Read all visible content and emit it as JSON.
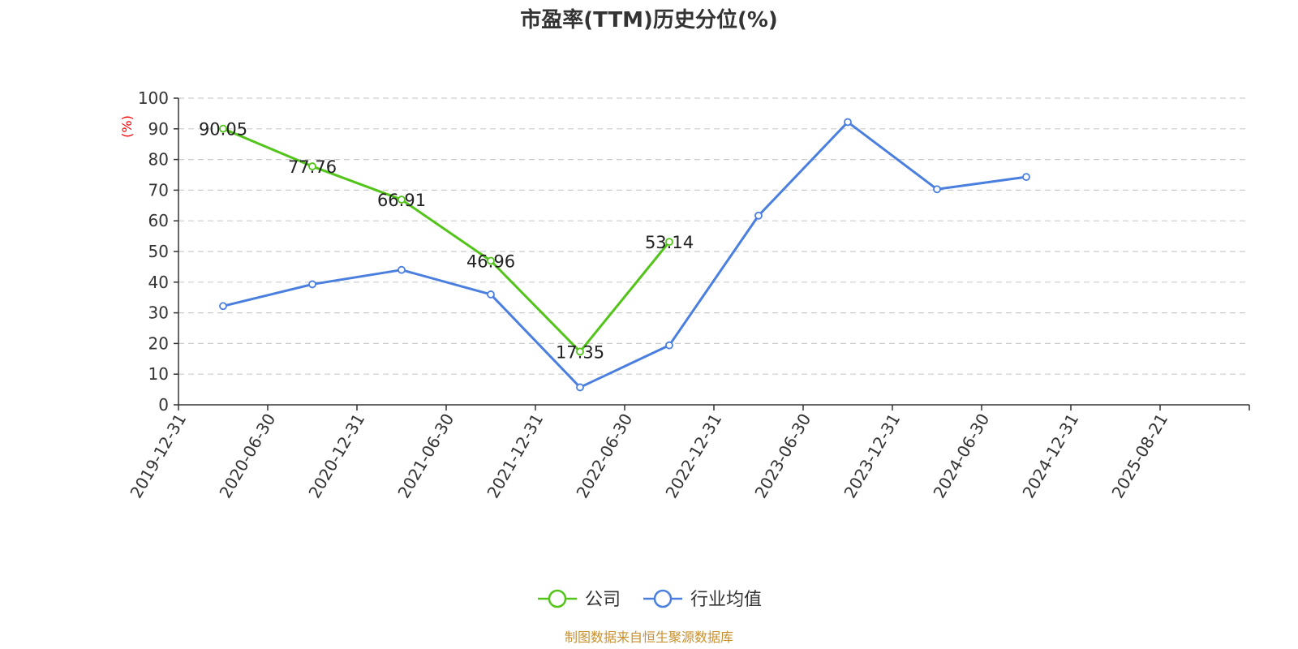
{
  "chart_data": {
    "type": "line",
    "title": "市盈率(TTM)历史分位(%)",
    "ylabel": "(%)",
    "xlabel": "",
    "ylim": [
      0,
      100
    ],
    "yticks": [
      0,
      10,
      20,
      30,
      40,
      50,
      60,
      70,
      80,
      90,
      100
    ],
    "categories": [
      "2019-12-31",
      "2020-06-30",
      "2020-12-31",
      "2021-06-30",
      "2021-12-31",
      "2022-06-30",
      "2022-12-31",
      "2023-06-30",
      "2023-12-31",
      "2024-06-30",
      "2024-12-31",
      "2025-08-21"
    ],
    "grid": true,
    "legend_position": "bottom-center",
    "series": [
      {
        "name": "公司",
        "color": "#52c41a",
        "show_labels": true,
        "values": [
          90.05,
          77.76,
          66.91,
          46.96,
          17.35,
          53.14,
          null,
          null,
          null,
          null,
          null,
          null
        ],
        "labels": [
          "90.05",
          "77.76",
          "66.91",
          "46.96",
          "17.35",
          "53.14",
          null,
          null,
          null,
          null,
          null,
          null
        ]
      },
      {
        "name": "行业均值",
        "color": "#4a7fdf",
        "show_labels": false,
        "values": [
          32.2,
          39.3,
          44.0,
          36.0,
          5.7,
          19.4,
          61.7,
          92.2,
          70.3,
          74.3,
          null,
          null
        ]
      }
    ]
  },
  "footer": {
    "source": "制图数据来自恒生聚源数据库",
    "source_color": "#c8902e"
  },
  "colors": {
    "unit_color": "#ff0000"
  }
}
